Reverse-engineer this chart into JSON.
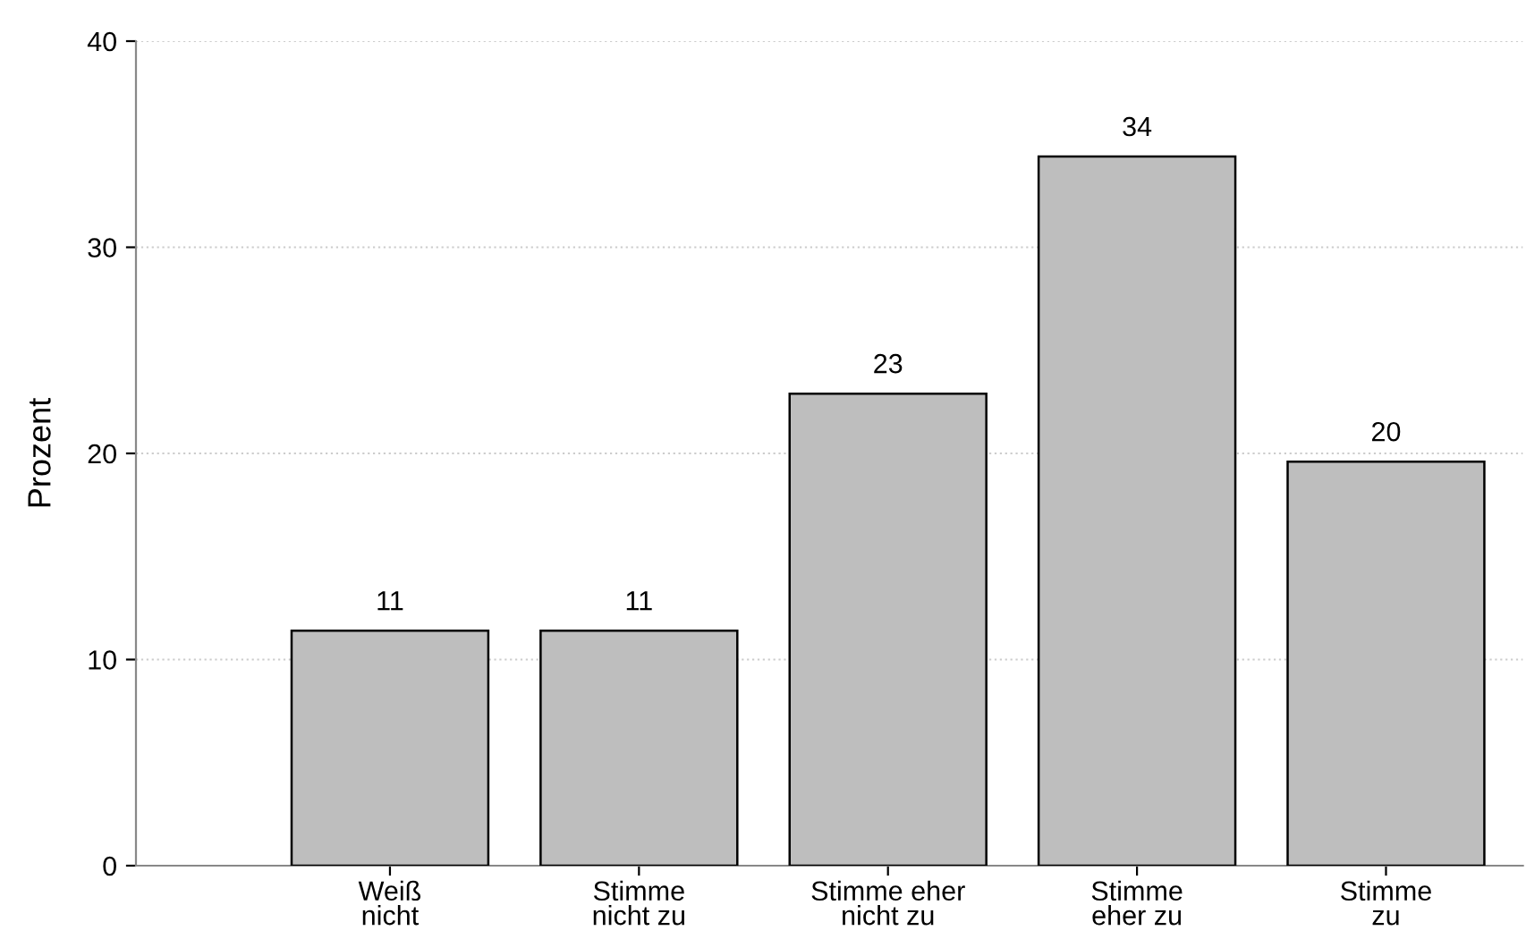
{
  "chart_data": {
    "type": "bar",
    "ylabel": "Prozent",
    "categories": [
      "Weiß\nnicht",
      "Stimme\nnicht zu",
      "Stimme eher\nnicht zu",
      "Stimme\neher zu",
      "Stimme\nzu"
    ],
    "values": [
      11.4,
      11.4,
      22.9,
      34.4,
      19.6
    ],
    "value_labels": [
      "11",
      "11",
      "23",
      "34",
      "20"
    ],
    "color": "#bebebe",
    "ylim": [
      0,
      40
    ],
    "yticks": [
      0,
      10,
      20,
      30,
      40
    ],
    "grid": "y"
  }
}
